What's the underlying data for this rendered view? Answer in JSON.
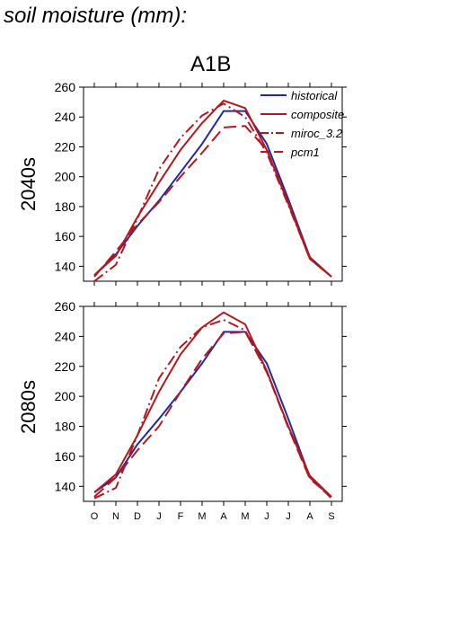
{
  "header": {
    "title": "soil moisture (mm):",
    "scenario": "A1B"
  },
  "colors": {
    "historical": "#1f2aa8",
    "composite": "#b5181c",
    "miroc_3.2": "#b5181c",
    "pcm1": "#b5181c"
  },
  "chart_data": [
    {
      "type": "line",
      "row_label": "2040s",
      "categories": [
        "O",
        "N",
        "D",
        "J",
        "F",
        "M",
        "A",
        "M",
        "J",
        "J",
        "A",
        "S"
      ],
      "ylim": [
        130,
        260
      ],
      "yticks": [
        140,
        160,
        180,
        200,
        220,
        240,
        260
      ],
      "grid": false,
      "legend": "top-right",
      "legend_entries": [
        "historical",
        "composite",
        "miroc_3.2",
        "pcm1"
      ],
      "series": [
        {
          "name": "historical",
          "style": "solid",
          "values": [
            134,
            148,
            167,
            184,
            203,
            222,
            244,
            244,
            222,
            185,
            146,
            133
          ]
        },
        {
          "name": "composite",
          "style": "solid",
          "values": [
            134,
            147,
            173,
            196,
            218,
            236,
            251,
            246,
            218,
            182,
            145,
            133
          ]
        },
        {
          "name": "miroc_3.2",
          "style": "dashdot",
          "values": [
            130,
            141,
            172,
            205,
            226,
            241,
            249,
            240,
            216,
            181,
            145,
            133
          ]
        },
        {
          "name": "pcm1",
          "style": "dashed",
          "values": [
            133,
            150,
            168,
            183,
            200,
            216,
            233,
            234,
            218,
            183,
            146,
            133
          ]
        }
      ]
    },
    {
      "type": "line",
      "row_label": "2080s",
      "categories": [
        "O",
        "N",
        "D",
        "J",
        "F",
        "M",
        "A",
        "M",
        "J",
        "J",
        "A",
        "S"
      ],
      "xticklabels": [
        "O",
        "N",
        "D",
        "J",
        "F",
        "M",
        "A",
        "M",
        "J",
        "J",
        "A",
        "S"
      ],
      "ylim": [
        130,
        260
      ],
      "yticks": [
        140,
        160,
        180,
        200,
        220,
        240,
        260
      ],
      "grid": false,
      "series": [
        {
          "name": "historical",
          "style": "solid",
          "values": [
            136,
            146,
            168,
            185,
            203,
            222,
            243,
            243,
            222,
            185,
            146,
            133
          ]
        },
        {
          "name": "composite",
          "style": "solid",
          "values": [
            136,
            148,
            174,
            203,
            228,
            246,
            256,
            248,
            217,
            180,
            147,
            133
          ]
        },
        {
          "name": "miroc_3.2",
          "style": "dashdot",
          "values": [
            132,
            139,
            174,
            212,
            233,
            246,
            251,
            244,
            216,
            180,
            146,
            132
          ]
        },
        {
          "name": "pcm1",
          "style": "dashed",
          "values": [
            133,
            146,
            164,
            180,
            203,
            225,
            242,
            243,
            217,
            179,
            145,
            133
          ]
        }
      ]
    }
  ]
}
